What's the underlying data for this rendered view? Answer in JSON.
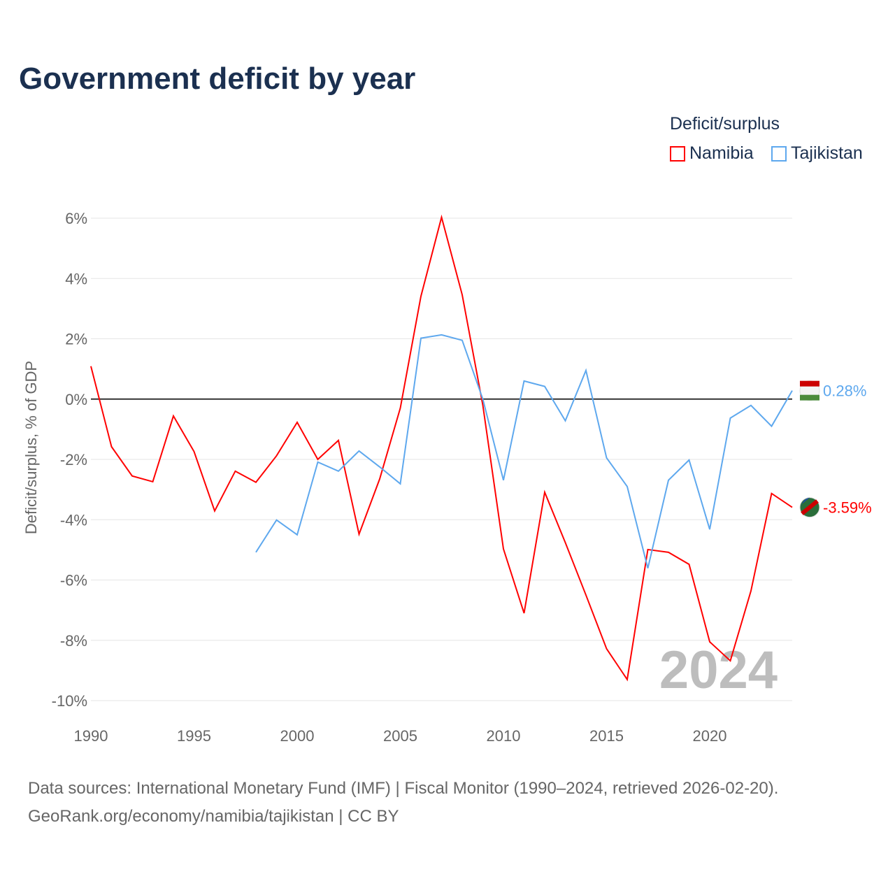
{
  "title": "Government deficit by year",
  "legend_title": "Deficit/surplus",
  "source_line1": "Data sources: International Monetary Fund (IMF) | Fiscal Monitor (1990–2024, retrieved 2026-02-20).",
  "source_line2": "GeoRank.org/economy/namibia/tajikistan | CC BY",
  "chart_data": {
    "type": "line",
    "title": "Government deficit by year",
    "ylabel": "Deficit/surplus, % of GDP",
    "xlabel": "",
    "xlim": [
      1990,
      2024
    ],
    "ylim": [
      -10,
      6
    ],
    "yticks": [
      6,
      4,
      2,
      0,
      -2,
      -4,
      -6,
      -8,
      -10
    ],
    "ytick_labels": [
      "6%",
      "4%",
      "2%",
      "0%",
      "-2%",
      "-4%",
      "-6%",
      "-8%",
      "-10%"
    ],
    "xticks": [
      1990,
      1995,
      2000,
      2005,
      2010,
      2015,
      2020
    ],
    "xtick_labels": [
      "1990",
      "1995",
      "2000",
      "2005",
      "2010",
      "2015",
      "2020"
    ],
    "watermark": "2024",
    "grid": true,
    "legend_placement": "top-right",
    "series": [
      {
        "name": "Namibia",
        "color": "#ff0000",
        "end_label": "-3.59%",
        "x_start": 1990,
        "values": [
          1.09,
          -1.58,
          -2.55,
          -2.74,
          -0.56,
          -1.74,
          -3.71,
          -2.39,
          -2.76,
          -1.88,
          -0.77,
          -2.0,
          -1.37,
          -4.48,
          -2.65,
          -0.3,
          3.41,
          6.03,
          3.46,
          -0.2,
          -4.97,
          -7.1,
          -3.09,
          -4.76,
          -6.5,
          -8.28,
          -9.3,
          -4.99,
          -5.08,
          -5.48,
          -8.05,
          -8.68,
          -6.36,
          -3.13,
          -3.59
        ]
      },
      {
        "name": "Tajikistan",
        "color": "#5ea8ee",
        "end_label": "0.28%",
        "x_start": 1998,
        "values": [
          -5.08,
          -4.01,
          -4.5,
          -2.09,
          -2.39,
          -1.72,
          -2.25,
          -2.81,
          2.02,
          2.13,
          1.95,
          0,
          -2.69,
          0.6,
          0.42,
          -0.72,
          0.95,
          -1.95,
          -2.9,
          -5.61,
          -2.69,
          -2.02,
          -4.32,
          -0.63,
          -0.21,
          -0.9,
          0.28
        ]
      }
    ]
  }
}
